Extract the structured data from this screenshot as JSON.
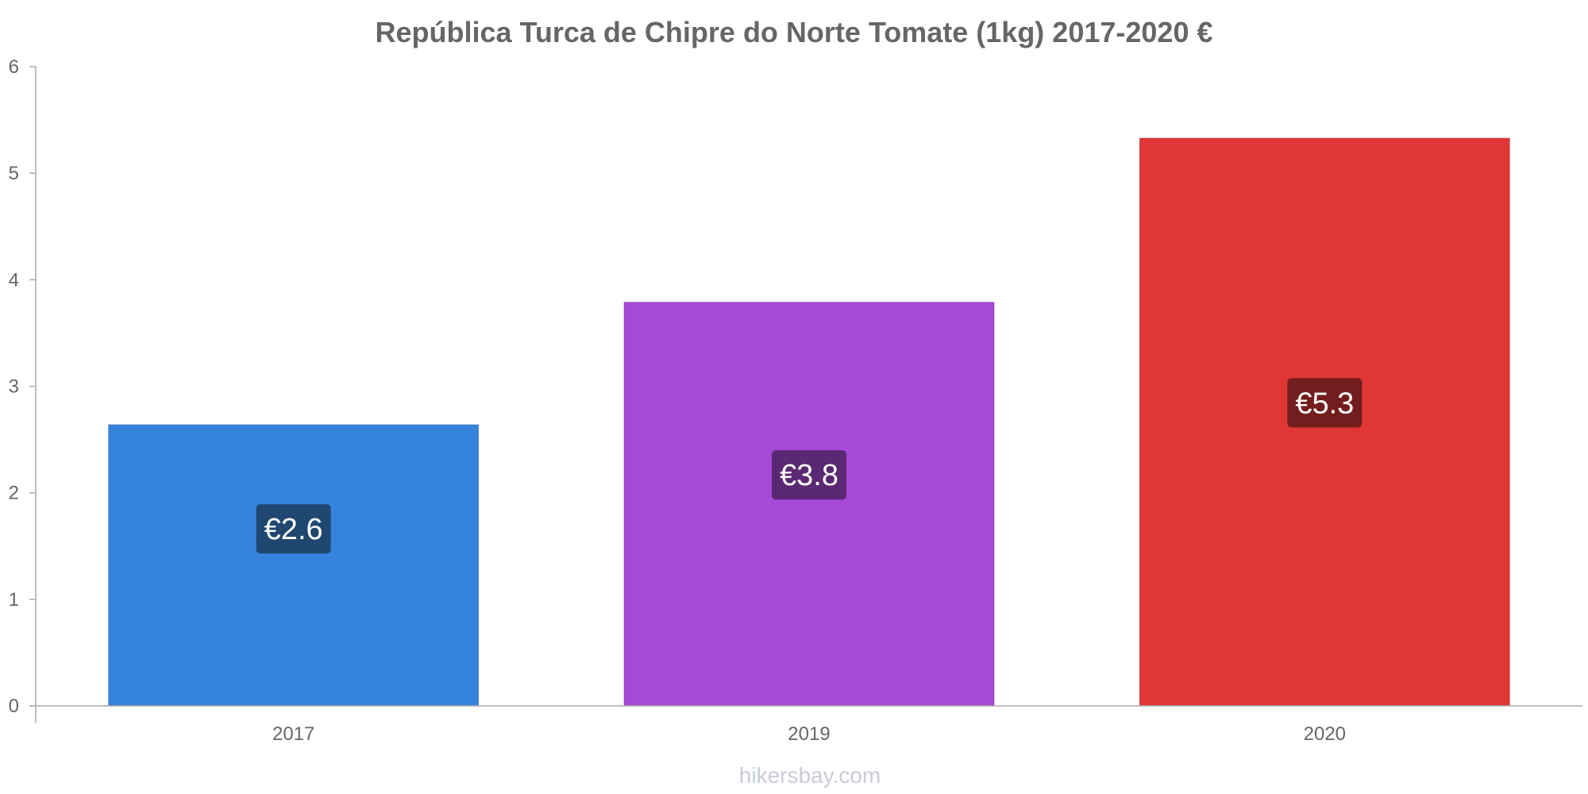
{
  "chart_data": {
    "type": "bar",
    "title": "República Turca de Chipre do Norte Tomate (1kg) 2017-2020 €",
    "categories": [
      "2017",
      "2019",
      "2020"
    ],
    "values": [
      2.64,
      3.79,
      5.33
    ],
    "value_labels": [
      "€2.6",
      "€3.8",
      "€5.3"
    ],
    "bar_colors": [
      "#3683dd",
      "#a648d8",
      "#e03636"
    ],
    "label_colors": [
      "#1f4770",
      "#5b2873",
      "#731e1e"
    ],
    "ylim": [
      0,
      6
    ],
    "yticks": [
      "0",
      "1",
      "2",
      "3",
      "4",
      "5",
      "6"
    ],
    "xlabel": "",
    "ylabel": "",
    "grid": false,
    "watermark": "hikersbay.com"
  }
}
